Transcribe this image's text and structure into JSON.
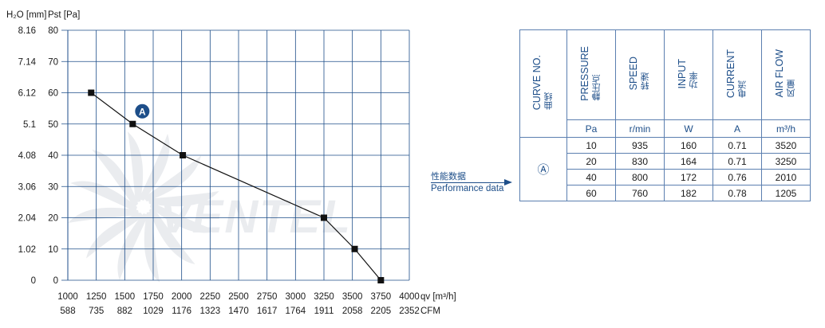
{
  "chart_data": {
    "type": "line",
    "xlabel": "qv [m³/h]",
    "xlabel_secondary": "CFM",
    "ylabel_left": "H₂O [mm]",
    "ylabel_right": "Pst [Pa]",
    "xlim": [
      1000,
      4000
    ],
    "ylim": [
      0,
      80
    ],
    "x_ticks": [
      "1000",
      "1250",
      "1500",
      "1750",
      "2000",
      "2250",
      "2500",
      "2750",
      "3000",
      "3250",
      "3500",
      "3750",
      "4000"
    ],
    "x_ticks_cfm": [
      "588",
      "735",
      "882",
      "1029",
      "1176",
      "1323",
      "1470",
      "1617",
      "1764",
      "1911",
      "2058",
      "2205",
      "2352"
    ],
    "y_ticks_pa": [
      "0",
      "10",
      "20",
      "30",
      "40",
      "50",
      "60",
      "70",
      "80"
    ],
    "y_ticks_mm": [
      "0",
      "1.02",
      "2.04",
      "3.06",
      "4.08",
      "5.1",
      "6.12",
      "7.14",
      "8.16"
    ],
    "grid": true,
    "series": [
      {
        "name": "A",
        "x": [
          1205,
          1570,
          2010,
          3250,
          3520,
          3750
        ],
        "y": [
          60,
          50,
          40,
          20,
          10,
          0
        ]
      }
    ],
    "watermark": "VENTEL"
  },
  "legend_arrow": {
    "label_cn": "性能数据",
    "label_en": "Performance data"
  },
  "table": {
    "headers": [
      {
        "en": "CURVE NO.",
        "cn": "曲线",
        "unit": ""
      },
      {
        "en": "PRESSURE",
        "cn": "静压点",
        "unit": "Pa"
      },
      {
        "en": "SPEED",
        "cn": "转速",
        "unit": "r/min"
      },
      {
        "en": "INPUT",
        "cn": "功率",
        "unit": "W"
      },
      {
        "en": "CURRENT",
        "cn": "电流",
        "unit": "A"
      },
      {
        "en": "AIR FLOW",
        "cn": "风量",
        "unit": "m³/h"
      }
    ],
    "curve_label": "Ⓐ",
    "rows": [
      [
        "10",
        "935",
        "160",
        "0.71",
        "3520"
      ],
      [
        "20",
        "830",
        "164",
        "0.71",
        "3250"
      ],
      [
        "40",
        "800",
        "172",
        "0.76",
        "2010"
      ],
      [
        "60",
        "760",
        "182",
        "0.78",
        "1205"
      ]
    ]
  },
  "colors": {
    "grid": "#1d4e89",
    "axis_text": "#1a1a1a",
    "table_text": "#1d4e89",
    "line": "#111111",
    "marker": "#111111",
    "watermark": "#d9dde3",
    "accent_circle": "#1d4e89"
  }
}
